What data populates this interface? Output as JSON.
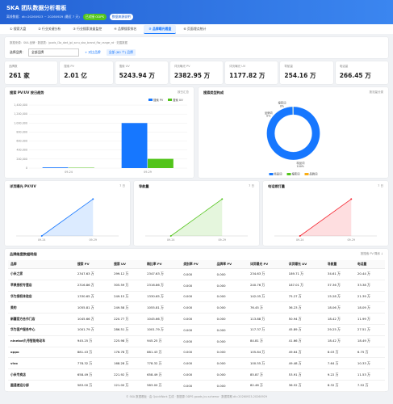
{
  "header": {
    "title": "SKA 团队数据分析看板",
    "subtitle": "离线数据：dt=20260923 ~ 20260929 (最近 7 天)",
    "badges": [
      "已对接 ODPS",
      "数据来源说明"
    ]
  },
  "tabs": {
    "items": [
      "① 搜索大盘",
      "② 行业关键分析",
      "③ 行业搜索流量监控",
      "④ 品牌搜索排名",
      "⑤ 品牌曝光看盘",
      "⑥ 页面埋点统计"
    ],
    "active": 4
  },
  "filters": {
    "source": "数据来源：SKA 品牌 · 数据表：jpods_l3a_dwt_jpl_scru_ska_brand_flw_range_rd · 范围数据",
    "brand_label": "选择品牌：",
    "brand_select": "全部品牌",
    "buttons": [
      "+ 对比品牌",
      "全部 (80 个) 品牌"
    ]
  },
  "kpis": [
    {
      "label": "品牌数",
      "value": "261 家"
    },
    {
      "label": "搜索 PV",
      "value": "2.01 亿"
    },
    {
      "label": "搜索 UV",
      "value": "5243.94 万"
    },
    {
      "label": "详页曝光 PV",
      "value": "2382.95 万"
    },
    {
      "label": "详页曝光 UV",
      "value": "1177.82 万"
    },
    {
      "label": "导航量",
      "value": "254.16 万"
    },
    {
      "label": "电话量",
      "value": "266.45 万"
    }
  ],
  "chart_data": [
    {
      "type": "bar",
      "title": "搜索 PV/UV 按日趋势",
      "note": "按日汇总",
      "categories": [
        "09-24",
        "09-29"
      ],
      "series": [
        {
          "name": "搜索 PV",
          "color": "#1677ff",
          "values": [
            15000,
            1000000
          ]
        },
        {
          "name": "搜索 UV",
          "color": "#52c41a",
          "values": [
            8000,
            205000
          ]
        }
      ],
      "ylim": [
        0,
        1400000
      ],
      "yticks": [
        0,
        {
          "value": 200000,
          "label": "200,000"
        },
        {
          "value": 400000,
          "label": "400,000"
        },
        {
          "value": 600000,
          "label": "600,000"
        },
        {
          "value": 800000,
          "label": "800,000"
        },
        {
          "value": 1000000,
          "label": "1,000,000"
        },
        {
          "value": 1200000,
          "label": "1,200,000"
        },
        {
          "value": 1400000,
          "label": "1,400,000"
        }
      ],
      "grid": true,
      "legend": "top-right"
    },
    {
      "type": "pie",
      "title": "搜索类型构成",
      "note": "按流量分类",
      "categories": [
        "精品词",
        "搜索词",
        "品牌词"
      ],
      "values": [
        99.6,
        0.2,
        0.2
      ],
      "value_labels": [
        "100%",
        "0%",
        "0%"
      ],
      "colors": [
        "#1677ff",
        "#52c41a",
        "#faad14"
      ],
      "donut": true,
      "legend": "bottom"
    },
    {
      "type": "line",
      "title": "详页曝光 PV/UV",
      "note": "7 日",
      "categories": [
        "09-24",
        "09-29"
      ],
      "series": [
        {
          "color": "#1677ff",
          "values": [
            0,
            95
          ]
        }
      ],
      "ylim": [
        0,
        100
      ]
    },
    {
      "type": "line",
      "title": "导航量",
      "note": "7 日",
      "categories": [
        "09-24",
        "09-29"
      ],
      "series": [
        {
          "color": "#52c41a",
          "values": [
            0,
            95
          ]
        }
      ],
      "ylim": [
        0,
        100
      ]
    },
    {
      "type": "line",
      "title": "电话拨打量",
      "note": "7 日",
      "categories": [
        "09-24",
        "09-29"
      ],
      "series": [
        {
          "color": "#f5222d",
          "values": [
            0,
            95
          ]
        }
      ],
      "ylim": [
        0,
        100
      ]
    }
  ],
  "table": {
    "title": "品牌维度数据明细",
    "note": "按搜索 PV 降序 ↓",
    "columns": [
      "品牌",
      "搜索 PV",
      "搜索 UV",
      "精比率 PV",
      "类别率 PV",
      "品牌率 PV",
      "详页曝光 PV",
      "详页曝光 UV",
      "导航量",
      "电话量"
    ],
    "rows": [
      [
        "小米之家",
        "2347.63 万",
        "299.12 万",
        "2347.63 万",
        "0.000",
        "0.000",
        "234.63 万",
        "189.71 万",
        "34.61 万",
        "20.44 万"
      ],
      [
        "苹果授权专营店",
        "2316.86 万",
        "305.59 万",
        "2316.86 万",
        "0.000",
        "0.000",
        "240.76 万",
        "187.01 万",
        "37.36 万",
        "33.38 万"
      ],
      [
        "华为授权体验店",
        "1330.65 万",
        "249.15 万",
        "1330.65 万",
        "0.000",
        "0.000",
        "142.05 万",
        "75.27 万",
        "15.28 万",
        "21.39 万"
      ],
      [
        "美的",
        "1055.81 万",
        "249.58 万",
        "1055.81 万",
        "0.000",
        "0.000",
        "76.45 万",
        "36.23 万",
        "18.06 万",
        "18.09 万"
      ],
      [
        "新疆官方合作门店",
        "1045.66 万",
        "220.77 万",
        "1045.66 万",
        "0.000",
        "0.000",
        "113.88 万",
        "50.94 万",
        "18.42 万",
        "11.99 万"
      ],
      [
        "华为客户服务中心",
        "1001.79 万",
        "286.51 万",
        "1001.79 万",
        "0.000",
        "0.000",
        "117.37 万",
        "45.89 万",
        "29.25 万",
        "27.51 万"
      ],
      [
        "ninebot九号智能电动车",
        "945.25 万",
        "225.98 万",
        "945.25 万",
        "0.000",
        "0.000",
        "84.81 万",
        "41.66 万",
        "18.42 万",
        "18.49 万"
      ],
      [
        "oppo",
        "881.43 万",
        "176.78 万",
        "881.43 万",
        "0.000",
        "0.000",
        "105.84 万",
        "49.64 万",
        "8.03 万",
        "6.75 万"
      ],
      [
        "vivo",
        "778.32 万",
        "168.28 万",
        "778.32 万",
        "0.000",
        "0.000",
        "100.55 万",
        "49.48 万",
        "7.64 万",
        "10.33 万"
      ],
      [
        "小米专卖店",
        "658.49 万",
        "221.92 万",
        "658.49 万",
        "0.000",
        "0.000",
        "85.87 万",
        "53.91 万",
        "9.22 万",
        "11.53 万"
      ],
      [
        "圆通速运分部",
        "583.00 万",
        "121.00 万",
        "583.00 万",
        "0.000",
        "0.000",
        "82.46 万",
        "36.52 万",
        "8.32 万",
        "7.52 万"
      ]
    ]
  },
  "footer": "© SKA 数据看板 · 由 QuickWork 生成 · 数据源 ODPS goods_bu schema · 数据周期 dt=20260923-20260929"
}
